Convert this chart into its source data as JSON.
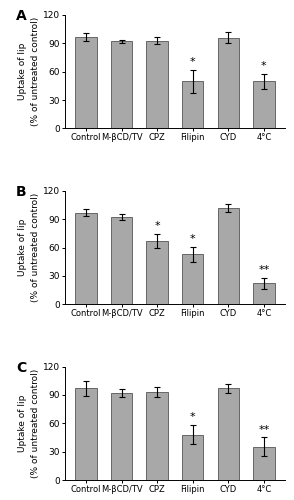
{
  "panels": [
    {
      "label": "A",
      "categories": [
        "Control",
        "M-βCD/TV",
        "CPZ",
        "Filipin",
        "CYD",
        "4°C"
      ],
      "values": [
        97,
        92,
        93,
        50,
        96,
        50
      ],
      "errors": [
        4,
        2,
        4,
        12,
        6,
        8
      ],
      "significance": [
        "",
        "",
        "",
        "*",
        "",
        "*"
      ]
    },
    {
      "label": "B",
      "categories": [
        "Control",
        "M-βCD/TV",
        "CPZ",
        "Filipin",
        "CYD",
        "4°C"
      ],
      "values": [
        97,
        92,
        67,
        53,
        102,
        22
      ],
      "errors": [
        4,
        3,
        7,
        8,
        4,
        6
      ],
      "significance": [
        "",
        "",
        "*",
        "*",
        "",
        "**"
      ]
    },
    {
      "label": "C",
      "categories": [
        "Control",
        "M-βCD/TV",
        "CPZ",
        "Filipin",
        "CYD",
        "4°C"
      ],
      "values": [
        97,
        92,
        93,
        48,
        97,
        35
      ],
      "errors": [
        8,
        4,
        5,
        10,
        5,
        10
      ],
      "significance": [
        "",
        "",
        "",
        "*",
        "",
        "**"
      ]
    }
  ],
  "bar_color": "#a8a8a8",
  "bar_edgecolor": "#555555",
  "ylabel": "Uptake of lip\n(% of untreated control)",
  "ylim": [
    0,
    120
  ],
  "yticks": [
    0,
    30,
    60,
    90,
    120
  ],
  "background_color": "#ffffff",
  "fig_width": 2.94,
  "fig_height": 5.0,
  "dpi": 100
}
